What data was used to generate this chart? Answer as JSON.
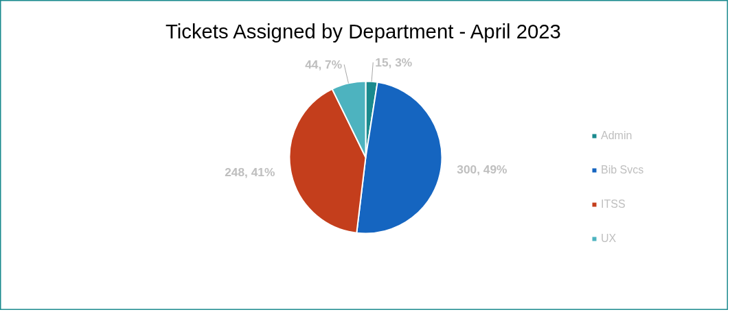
{
  "chart_data": {
    "type": "pie",
    "title": "Tickets Assigned by Department - April 2023",
    "categories": [
      "Admin",
      "Bib Svcs",
      "ITSS",
      "UX"
    ],
    "values": [
      15,
      300,
      248,
      44
    ],
    "colors": [
      "#1a8a8e",
      "#1565c0",
      "#c43e1c",
      "#4db3bf"
    ],
    "value_labels": [
      "15, 3%",
      "300, 49%",
      "248, 41%",
      "44, 7%"
    ],
    "legend": "right"
  }
}
